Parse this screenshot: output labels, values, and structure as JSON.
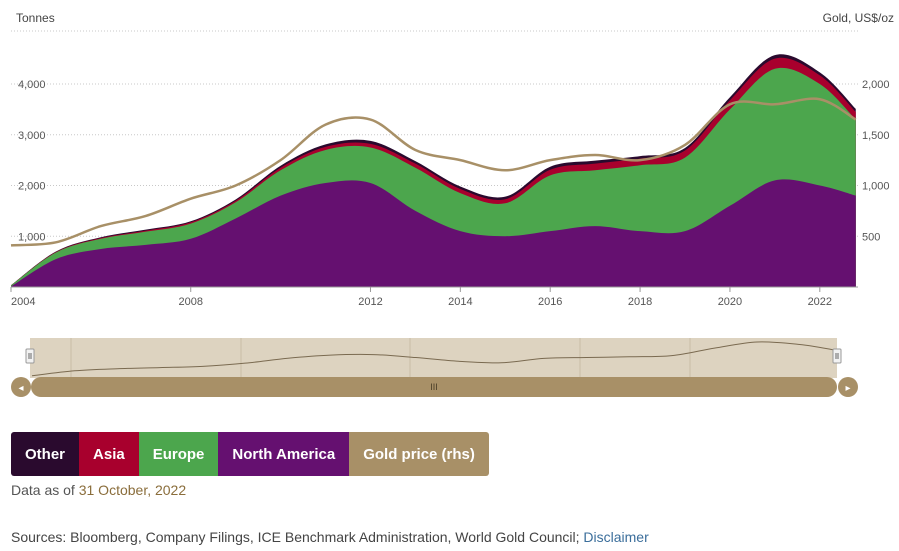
{
  "axis": {
    "left_title": "Tonnes",
    "right_title": "Gold, US$/oz"
  },
  "chart_data": {
    "type": "area",
    "x": [
      2004,
      2005,
      2006,
      2007,
      2008,
      2009,
      2010,
      2011,
      2012,
      2013,
      2014,
      2015,
      2016,
      2017,
      2018,
      2019,
      2020,
      2021,
      2022,
      2022.8
    ],
    "xlim": [
      2004,
      2022.85
    ],
    "x_ticks": [
      "2004",
      "2008",
      "2012",
      "2014",
      "2016",
      "2018",
      "2020",
      "2022"
    ],
    "x_tick_values": [
      2004,
      2008,
      2012,
      2014,
      2016,
      2018,
      2020,
      2022
    ],
    "ylim": [
      0,
      4000
    ],
    "y_ticks": [
      1000,
      2000,
      3000,
      4000
    ],
    "y_tick_labels": [
      "1,000",
      "2,000",
      "3,000",
      "4,000"
    ],
    "y2lim": [
      0,
      2000
    ],
    "y2_ticks": [
      500,
      1000,
      1500,
      2000
    ],
    "y2_tick_labels": [
      "500",
      "1,000",
      "1,500",
      "2,000"
    ],
    "series": [
      {
        "name": "North America",
        "color": "#651070",
        "axis": "left",
        "stacked": true,
        "values": [
          10,
          550,
          750,
          830,
          950,
          1350,
          1800,
          2050,
          2050,
          1500,
          1100,
          1000,
          1100,
          1200,
          1100,
          1100,
          1600,
          2100,
          2000,
          1800
        ]
      },
      {
        "name": "Europe",
        "color": "#4ca64d",
        "axis": "left",
        "stacked": true,
        "values": [
          20,
          130,
          200,
          260,
          300,
          320,
          500,
          650,
          700,
          850,
          750,
          650,
          1100,
          1100,
          1300,
          1450,
          1900,
          2200,
          2000,
          1500
        ]
      },
      {
        "name": "Asia",
        "color": "#a8002d",
        "axis": "left",
        "stacked": true,
        "values": [
          2,
          10,
          15,
          20,
          25,
          30,
          50,
          60,
          70,
          80,
          80,
          80,
          110,
          130,
          130,
          140,
          180,
          200,
          170,
          150
        ]
      },
      {
        "name": "Other",
        "color": "#2a0a2e",
        "axis": "left",
        "stacked": true,
        "values": [
          2,
          10,
          15,
          20,
          20,
          25,
          40,
          50,
          60,
          50,
          50,
          50,
          60,
          60,
          50,
          50,
          60,
          70,
          60,
          60
        ]
      },
      {
        "name": "Gold price (rhs)",
        "color": "#a89067",
        "axis": "right",
        "type": "line",
        "values": [
          410,
          440,
          600,
          700,
          870,
          1000,
          1250,
          1600,
          1650,
          1350,
          1250,
          1150,
          1250,
          1300,
          1250,
          1400,
          1800,
          1800,
          1850,
          1650
        ]
      }
    ]
  },
  "navigator": {
    "left_arrow": "◂",
    "right_arrow": "▸",
    "handle_grip": "III"
  },
  "legend": [
    {
      "label": "Other",
      "color": "#2a0a2e"
    },
    {
      "label": "Asia",
      "color": "#a8002d"
    },
    {
      "label": "Europe",
      "color": "#4ca64d"
    },
    {
      "label": "North America",
      "color": "#651070"
    },
    {
      "label": "Gold price (rhs)",
      "color": "#a89067"
    }
  ],
  "footer": {
    "data_as_of_prefix": "Data as of",
    "data_as_of_date": "31 October, 2022",
    "sources_text": "Sources: Bloomberg, Company Filings, ICE Benchmark Administration, World Gold Council; ",
    "disclaimer_label": "Disclaimer"
  }
}
